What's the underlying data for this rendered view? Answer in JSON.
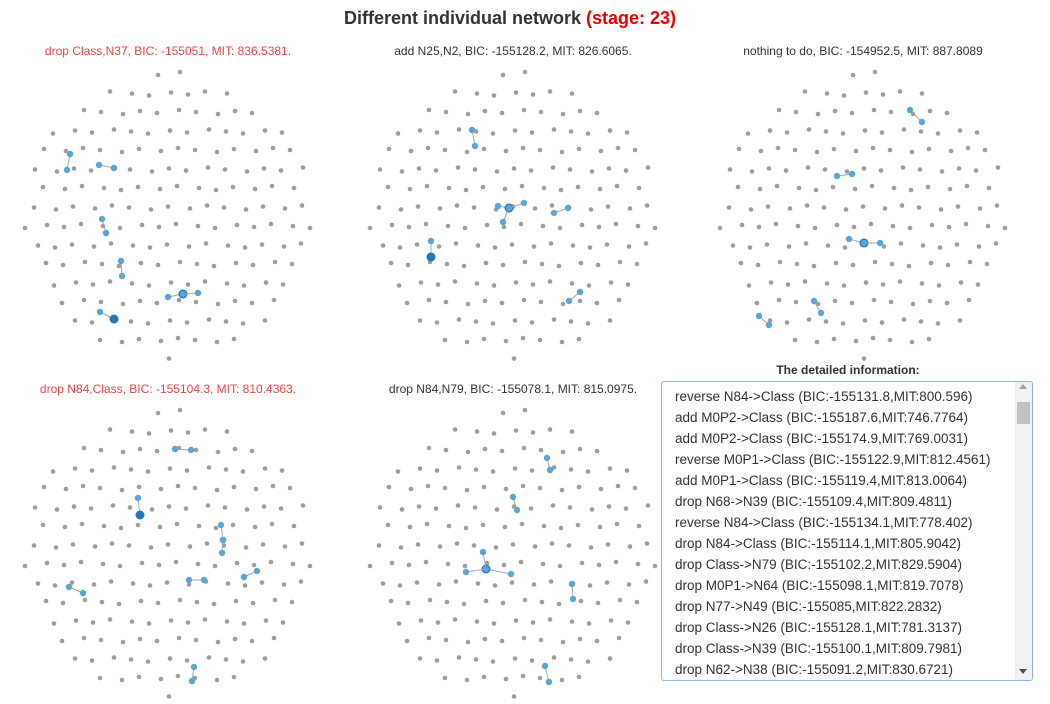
{
  "header": {
    "title": "Different individual network",
    "stage_label": "(stage: 23)"
  },
  "colors": {
    "node_gray": "#9e9e9e",
    "node_blue": "#5aa6d6",
    "node_blue_dark": "#2478b5",
    "highlight_red": "#ee4444",
    "stage_red": "#ee0000"
  },
  "networks": [
    {
      "caption": "drop Class,N37, BIC: -155051, MIT: 836.5381.",
      "highlight": true
    },
    {
      "caption": "add N25,N2, BIC: -155128.2, MIT: 826.6065.",
      "highlight": false
    },
    {
      "caption": "nothing to do, BIC: -154952.5, MIT: 887.8089",
      "highlight": false
    },
    {
      "caption": "drop N84,Class, BIC: -155104.3, MIT: 810.4363.",
      "highlight": true
    },
    {
      "caption": "drop N84,N79, BIC: -155078.1, MIT: 815.0975.",
      "highlight": false
    }
  ],
  "details": {
    "title": "The detailed information:",
    "items": [
      "reverse N84->Class (BIC:-155131.8,MIT:800.596)",
      "add M0P2->Class (BIC:-155187.6,MIT:746.7764)",
      "add M0P2->Class (BIC:-155174.9,MIT:769.0031)",
      "reverse M0P1->Class (BIC:-155122.9,MIT:812.4561)",
      "add M0P1->Class (BIC:-155119.4,MIT:813.0064)",
      "drop N68->N39 (BIC:-155109.4,MIT:809.4811)",
      "reverse N84->Class (BIC:-155134.1,MIT:778.402)",
      "drop N84->Class (BIC:-155114.1,MIT:805.9042)",
      "drop Class->N79 (BIC:-155102.2,MIT:829.5904)",
      "drop M0P1->N64 (BIC:-155098.1,MIT:819.7078)",
      "drop N77->N49 (BIC:-155085,MIT:822.2832)",
      "drop Class->N26 (BIC:-155128.1,MIT:781.3137)",
      "drop Class->N39 (BIC:-155100.1,MIT:809.7981)",
      "drop N62->N38 (BIC:-155091.2,MIT:830.6721)"
    ]
  }
}
